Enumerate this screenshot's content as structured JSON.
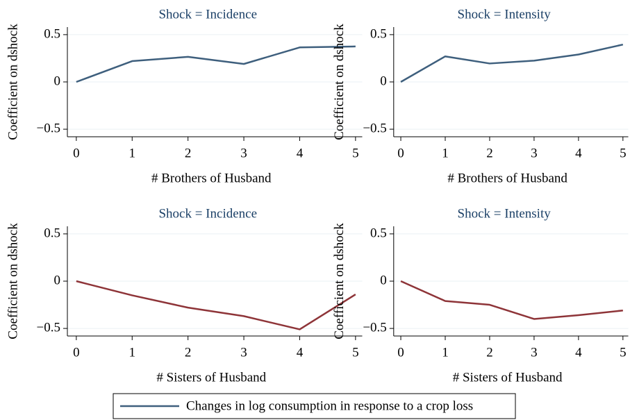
{
  "chart_data": [
    {
      "type": "line",
      "title": "Shock = Incidence",
      "xlabel": "# Brothers of Husband",
      "ylabel": "Coefficient on dshock",
      "x": [
        0,
        1,
        2,
        3,
        4,
        5
      ],
      "xlim": [
        -0.16,
        5.12
      ],
      "xticks": [
        0,
        1,
        2,
        3,
        4,
        5
      ],
      "ylim": [
        -0.58,
        0.58
      ],
      "yticks": [
        {
          "value": -0.5,
          "label": "−0.5"
        },
        0,
        0.5
      ],
      "grid": true,
      "series": [
        {
          "name": "Changes in log consumption in response to a crop loss",
          "color": "#3e5f7d",
          "values": [
            0,
            0.22,
            0.265,
            0.19,
            0.365,
            0.375
          ]
        }
      ]
    },
    {
      "type": "line",
      "title": "Shock = Intensity",
      "xlabel": "# Brothers of Husband",
      "ylabel": "Coefficient on dshock",
      "x": [
        0,
        1,
        2,
        3,
        4,
        5
      ],
      "xlim": [
        -0.16,
        5.12
      ],
      "xticks": [
        0,
        1,
        2,
        3,
        4,
        5
      ],
      "ylim": [
        -0.58,
        0.58
      ],
      "yticks": [
        {
          "value": -0.5,
          "label": "−0.5"
        },
        0,
        0.5
      ],
      "grid": true,
      "series": [
        {
          "color": "#3e5f7d",
          "values": [
            0,
            0.27,
            0.195,
            0.225,
            0.29,
            0.395
          ]
        }
      ]
    },
    {
      "type": "line",
      "title": "Shock = Incidence",
      "xlabel": "# Sisters of Husband",
      "ylabel": "Coefficient on dshock",
      "x": [
        0,
        1,
        2,
        3,
        4,
        5
      ],
      "xlim": [
        -0.16,
        5.12
      ],
      "xticks": [
        0,
        1,
        2,
        3,
        4,
        5
      ],
      "ylim": [
        -0.58,
        0.58
      ],
      "yticks": [
        {
          "value": -0.5,
          "label": "−0.5"
        },
        0,
        0.5
      ],
      "grid": true,
      "series": [
        {
          "color": "#8e3438",
          "values": [
            0,
            -0.15,
            -0.28,
            -0.37,
            -0.51,
            -0.14
          ]
        }
      ]
    },
    {
      "type": "line",
      "title": "Shock = Intensity",
      "xlabel": "# Sisters of Husband",
      "ylabel": "Coefficient on dshock",
      "x": [
        0,
        1,
        2,
        3,
        4,
        5
      ],
      "xlim": [
        -0.16,
        5.12
      ],
      "xticks": [
        0,
        1,
        2,
        3,
        4,
        5
      ],
      "ylim": [
        -0.58,
        0.58
      ],
      "yticks": [
        {
          "value": -0.5,
          "label": "−0.5"
        },
        0,
        0.5
      ],
      "grid": true,
      "series": [
        {
          "color": "#8e3438",
          "values": [
            0,
            -0.21,
            -0.25,
            -0.4,
            -0.36,
            -0.31
          ]
        }
      ]
    }
  ]
}
